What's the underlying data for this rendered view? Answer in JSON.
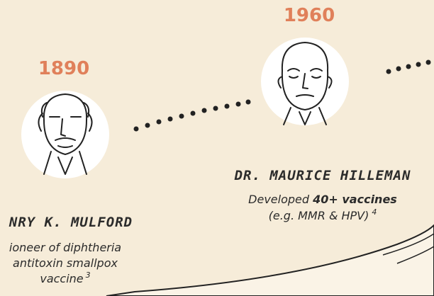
{
  "timeline": [
    {
      "year": "1890",
      "name": "NRY K. MULFORD",
      "description": [
        "ioneer of diphtheria",
        "antitoxin smallpox",
        "vaccine"
      ],
      "footnote": "3"
    },
    {
      "year": "1960",
      "name": "DR. MAURICE HILLEMAN",
      "description": [
        "Developed ",
        "40+ vaccines",
        "(e.g. MMR & HPV)"
      ],
      "footnote": "4"
    }
  ]
}
